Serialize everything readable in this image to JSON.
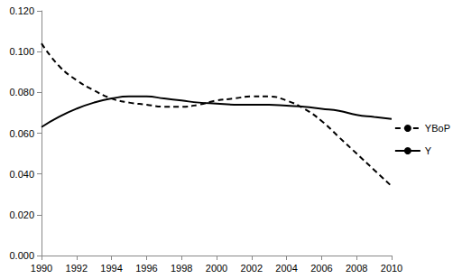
{
  "chart_data": {
    "type": "line",
    "x": [
      1990,
      1991,
      1992,
      1993,
      1994,
      1995,
      1996,
      1997,
      1998,
      1999,
      2000,
      2001,
      2002,
      2003,
      2004,
      2005,
      2006,
      2007,
      2008,
      2009,
      2010
    ],
    "series": [
      {
        "name": "YBoP",
        "color": "#000000",
        "line_style": "dashed",
        "marker": "none",
        "values": [
          0.104,
          0.093,
          0.086,
          0.081,
          0.077,
          0.075,
          0.074,
          0.073,
          0.073,
          0.074,
          0.076,
          0.077,
          0.078,
          0.078,
          0.076,
          0.072,
          0.066,
          0.058,
          0.05,
          0.042,
          0.034
        ]
      },
      {
        "name": "Y",
        "color": "#000000",
        "line_style": "solid",
        "marker": "none",
        "values": [
          0.063,
          0.068,
          0.072,
          0.075,
          0.077,
          0.078,
          0.078,
          0.077,
          0.076,
          0.075,
          0.0745,
          0.074,
          0.074,
          0.074,
          0.0735,
          0.073,
          0.072,
          0.071,
          0.069,
          0.068,
          0.067
        ]
      }
    ],
    "xlim": [
      1990,
      2010
    ],
    "xticks": [
      1990,
      1992,
      1994,
      1996,
      1998,
      2000,
      2002,
      2004,
      2006,
      2008,
      2010
    ],
    "ylim": [
      0,
      0.12
    ],
    "yticks": [
      {
        "value": 0,
        "label": "0.000"
      },
      {
        "value": 0.02,
        "label": "0.020"
      },
      {
        "value": 0.04,
        "label": "0.040"
      },
      {
        "value": 0.06,
        "label": "0.060"
      },
      {
        "value": 0.08,
        "label": "0.080"
      },
      {
        "value": 0.1,
        "label": "0.100"
      },
      {
        "value": 0.12,
        "label": "0.120"
      }
    ],
    "grid": false,
    "legend": "right"
  }
}
